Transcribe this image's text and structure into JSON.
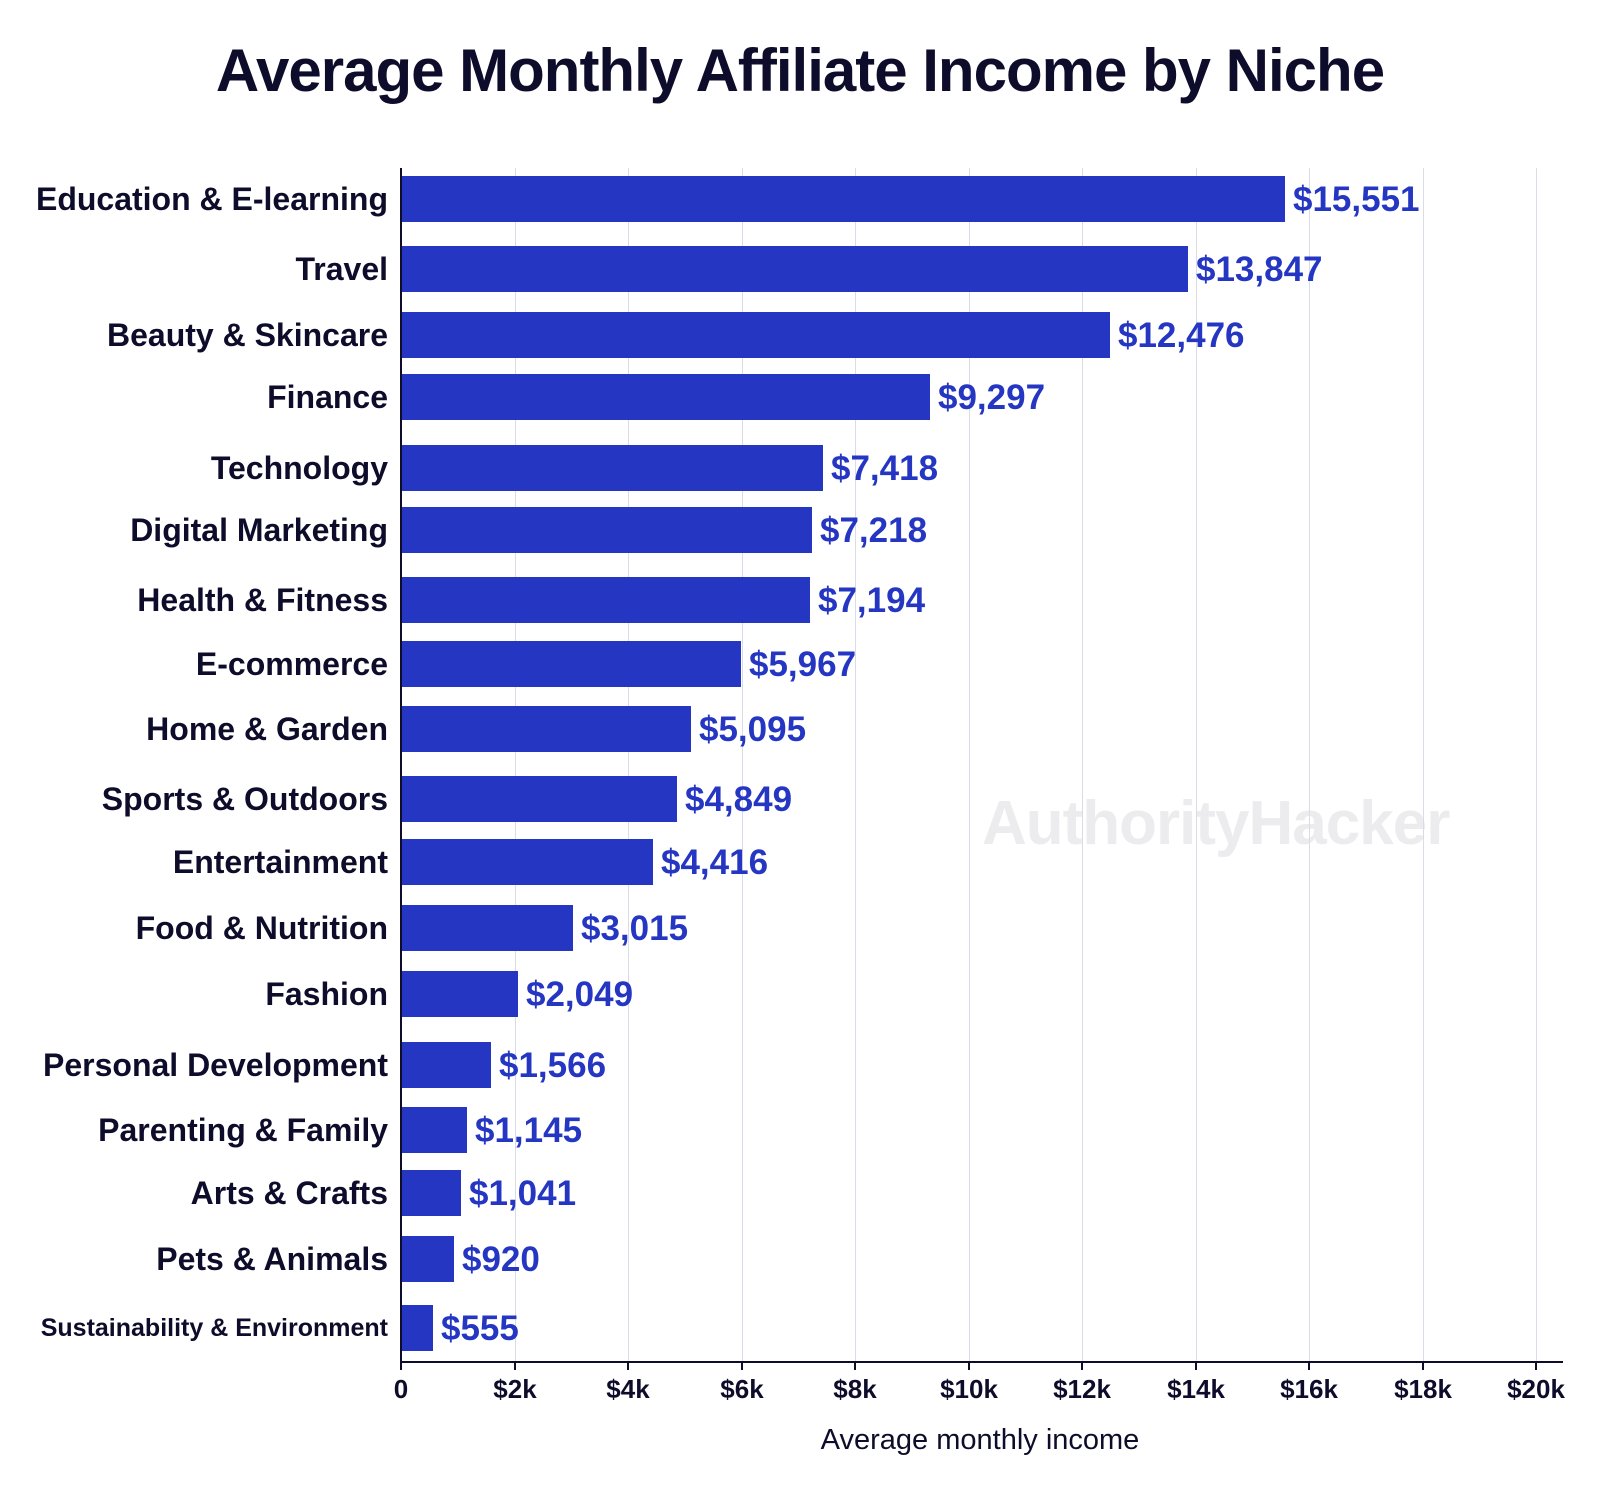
{
  "title": "Average Monthly Affiliate Income by Niche",
  "watermark": "AuthorityHacker",
  "colors": {
    "bar": "#2536c2",
    "value_label": "#2536c2",
    "text": "#0d0d2b",
    "grid": "#d9dbe6"
  },
  "x_axis": {
    "label": "Average monthly income",
    "ticks": [
      "0",
      "$2k",
      "$4k",
      "$6k",
      "$8k",
      "$10k",
      "$12k",
      "$14k",
      "$16k",
      "$18k",
      "$20k"
    ]
  },
  "bars": [
    {
      "category": "Education & E-learning",
      "label": "$15,551"
    },
    {
      "category": "Travel",
      "label": "$13,847"
    },
    {
      "category": "Beauty & Skincare",
      "label": "$12,476"
    },
    {
      "category": "Finance",
      "label": "$9,297"
    },
    {
      "category": "Technology",
      "label": "$7,418"
    },
    {
      "category": "Digital Marketing",
      "label": "$7,218"
    },
    {
      "category": "Health & Fitness",
      "label": "$7,194"
    },
    {
      "category": "E-commerce",
      "label": "$5,967"
    },
    {
      "category": "Home & Garden",
      "label": "$5,095"
    },
    {
      "category": "Sports & Outdoors",
      "label": "$4,849"
    },
    {
      "category": "Entertainment",
      "label": "$4,416"
    },
    {
      "category": "Food & Nutrition",
      "label": "$3,015"
    },
    {
      "category": "Fashion",
      "label": "$2,049"
    },
    {
      "category": "Personal Development",
      "label": "$1,566"
    },
    {
      "category": "Parenting & Family",
      "label": "$1,145"
    },
    {
      "category": "Arts & Crafts",
      "label": "$1,041"
    },
    {
      "category": "Pets & Animals",
      "label": "$920"
    },
    {
      "category": "Sustainability & Environment",
      "label": "$555"
    }
  ],
  "chart_data": {
    "type": "bar",
    "orientation": "horizontal",
    "title": "Average Monthly Affiliate Income by Niche",
    "xlabel": "Average monthly income",
    "ylabel": "",
    "xlim": [
      0,
      20000
    ],
    "x_tick_labels": [
      "0",
      "$2k",
      "$4k",
      "$6k",
      "$8k",
      "$10k",
      "$12k",
      "$14k",
      "$16k",
      "$18k",
      "$20k"
    ],
    "grid": "vertical",
    "legend": "none",
    "categories": [
      "Education & E-learning",
      "Travel",
      "Beauty & Skincare",
      "Finance",
      "Technology",
      "Digital Marketing",
      "Health & Fitness",
      "E-commerce",
      "Home & Garden",
      "Sports & Outdoors",
      "Entertainment",
      "Food & Nutrition",
      "Fashion",
      "Personal Development",
      "Parenting & Family",
      "Arts & Crafts",
      "Pets & Animals",
      "Sustainability & Environment"
    ],
    "values": [
      15551,
      13847,
      12476,
      9297,
      7418,
      7218,
      7194,
      5967,
      5095,
      4849,
      4416,
      3015,
      2049,
      1566,
      1145,
      1041,
      920,
      555
    ],
    "annotations": [
      "AuthorityHacker watermark"
    ]
  }
}
